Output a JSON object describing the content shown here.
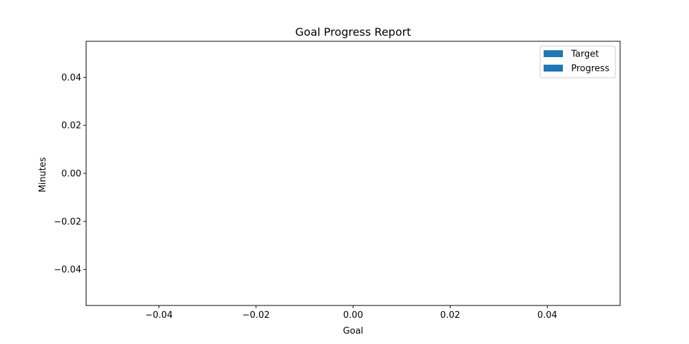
{
  "chart_data": {
    "type": "bar",
    "title": "Goal Progress Report",
    "xlabel": "Goal",
    "ylabel": "Minutes",
    "categories": [],
    "series": [
      {
        "name": "Target",
        "values": [],
        "color": "#1f77b4"
      },
      {
        "name": "Progress",
        "values": [],
        "color": "#1f77b4"
      }
    ],
    "xlim": [
      -0.055,
      0.055
    ],
    "ylim": [
      -0.055,
      0.055
    ],
    "xticks": [
      -0.04,
      -0.02,
      0.0,
      0.02,
      0.04
    ],
    "yticks": [
      -0.04,
      -0.02,
      0.0,
      0.02,
      0.04
    ],
    "xtick_labels": [
      "−0.04",
      "−0.02",
      "0.00",
      "0.02",
      "0.04"
    ],
    "ytick_labels": [
      "−0.04",
      "−0.02",
      "0.00",
      "0.02",
      "0.04"
    ],
    "grid": false,
    "legend_position": "top-right"
  }
}
